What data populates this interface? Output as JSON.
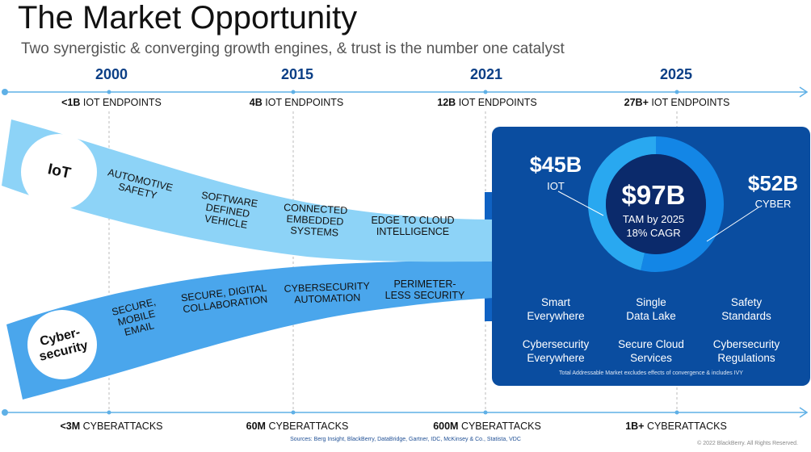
{
  "header": {
    "title": "The Market Opportunity",
    "subtitle": "Two synergistic & converging growth engines, & trust is the number one catalyst"
  },
  "timeline": {
    "years": [
      "2000",
      "2015",
      "2021",
      "2025"
    ],
    "iot_endpoints": [
      {
        "bold": "<1B",
        "rest": " IOT ENDPOINTS"
      },
      {
        "bold": "4B",
        "rest": " IOT ENDPOINTS"
      },
      {
        "bold": "12B",
        "rest": " IOT ENDPOINTS"
      },
      {
        "bold": "27B+",
        "rest": " IOT ENDPOINTS"
      }
    ],
    "cyberattacks": [
      {
        "bold": "<3M",
        "rest": " CYBERATTACKS"
      },
      {
        "bold": "60M",
        "rest": " CYBERATTACKS"
      },
      {
        "bold": "600M",
        "rest": " CYBERATTACKS"
      },
      {
        "bold": "1B+",
        "rest": " CYBERATTACKS"
      }
    ]
  },
  "engines": {
    "iot": {
      "label": "IoT",
      "stages": [
        "AUTOMOTIVE\nSAFETY",
        "SOFTWARE\nDEFINED\nVEHICLE",
        "CONNECTED\nEMBEDDED\nSYSTEMS",
        "EDGE TO CLOUD\nINTELLIGENCE"
      ]
    },
    "cyber": {
      "label": "Cyber-\nsecurity",
      "stages": [
        "SECURE,\nMOBILE\nEMAIL",
        "SECURE, DIGITAL\nCOLLABORATION",
        "CYBERSECURITY\nAUTOMATION",
        "PERIMETER-\nLESS SECURITY"
      ]
    }
  },
  "tam": {
    "iot_value": "$45B",
    "iot_label": "IOT",
    "cyber_value": "$52B",
    "cyber_label": "CYBER",
    "total_value": "$97B",
    "total_line1": "TAM by 2025",
    "total_line2": "18% CAGR",
    "iot_share": 0.464,
    "cyber_share": 0.536,
    "colors": {
      "panel": "#0a4da0",
      "iot_ring": "#29a8f0",
      "cyber_ring": "#1386e6",
      "center": "#0b2a6b"
    }
  },
  "features": [
    "Smart\nEverywhere",
    "Single\nData Lake",
    "Safety\nStandards",
    "Cybersecurity\nEverywhere",
    "Secure Cloud\nServices",
    "Cybersecurity\nRegulations"
  ],
  "footnote": "Total Addressable Market excludes effects of convergence & includes IVY",
  "sources": "Sources: Berg Insight, BlackBerry, DataBridge, Gartner, IDC, McKinsey & Co., Statista, VDC",
  "copyright": "© 2022 BlackBerry. All Rights Reserved.",
  "colors": {
    "year": "#0b3f86",
    "timeline": "#5fb0e6",
    "iot_band": "#8dd3f7",
    "cyber_band": "#4aa6ec",
    "arrow": "#0f62c3"
  }
}
